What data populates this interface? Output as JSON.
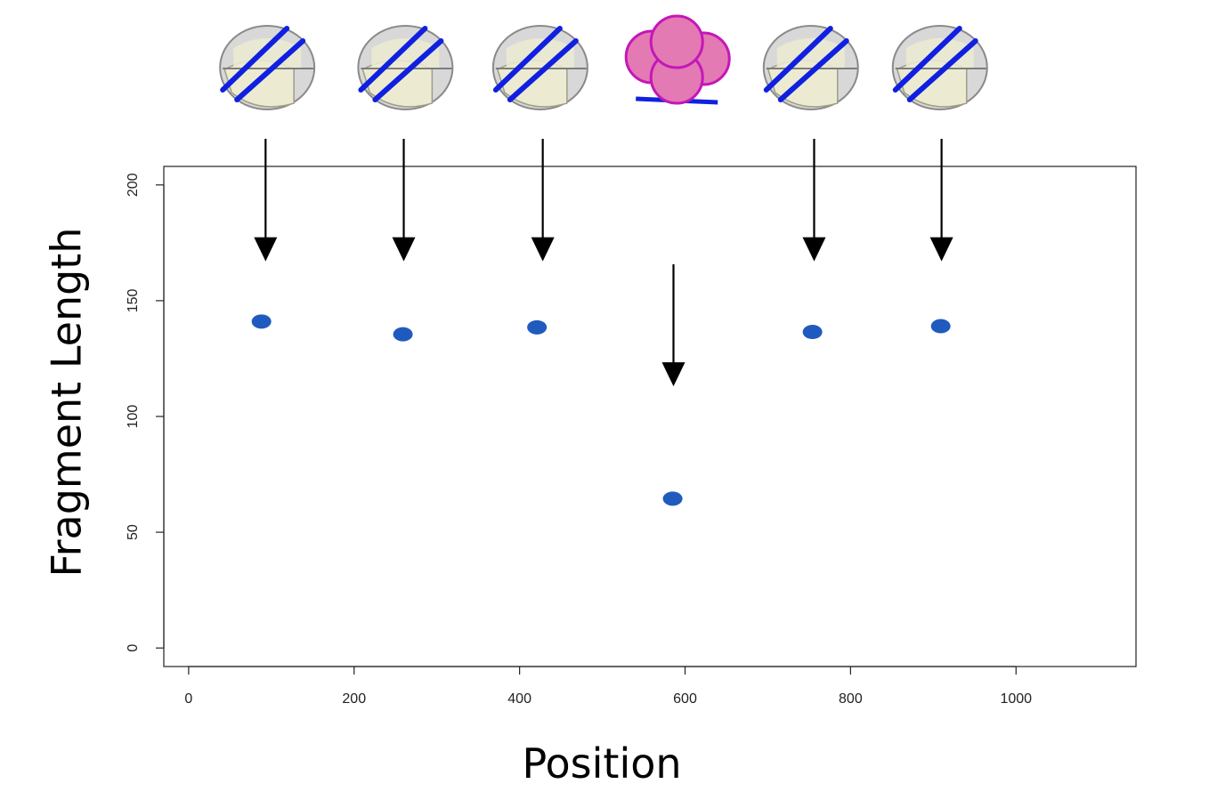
{
  "chart_data": {
    "type": "scatter",
    "title": "",
    "xlabel": "Position",
    "ylabel": "Fragment Length",
    "xlim": [
      -30,
      1145
    ],
    "ylim": [
      -8,
      208
    ],
    "x_ticks": [
      0,
      200,
      400,
      600,
      800,
      1000
    ],
    "y_ticks": [
      0,
      50,
      100,
      150,
      200
    ],
    "x_tick_labels": [
      "0",
      "200",
      "400",
      "600",
      "800",
      "1000"
    ],
    "y_tick_labels": [
      "0",
      "50",
      "100",
      "150",
      "200"
    ],
    "grid": false,
    "series": [
      {
        "points": [
          {
            "x": 88,
            "y": 141
          },
          {
            "x": 259,
            "y": 135.5
          },
          {
            "x": 421,
            "y": 138.5
          },
          {
            "x": 585,
            "y": 64.5
          },
          {
            "x": 754,
            "y": 136.5
          },
          {
            "x": 909,
            "y": 139
          }
        ],
        "color": "#1f5bbf"
      }
    ],
    "annotations": {
      "icons": [
        {
          "kind": "nucleosome-icon",
          "x": 95
        },
        {
          "kind": "nucleosome-icon",
          "x": 262
        },
        {
          "kind": "nucleosome-icon",
          "x": 425
        },
        {
          "kind": "histone-octamer-icon",
          "x": 590
        },
        {
          "kind": "nucleosome-icon",
          "x": 752
        },
        {
          "kind": "nucleosome-icon",
          "x": 908
        }
      ],
      "arrows": [
        {
          "x": 93,
          "y_tip": 167
        },
        {
          "x": 260,
          "y_tip": 167
        },
        {
          "x": 428,
          "y_tip": 167
        },
        {
          "x": 586,
          "y_tip": 113
        },
        {
          "x": 756,
          "y_tip": 167
        },
        {
          "x": 910,
          "y_tip": 167
        }
      ]
    }
  }
}
